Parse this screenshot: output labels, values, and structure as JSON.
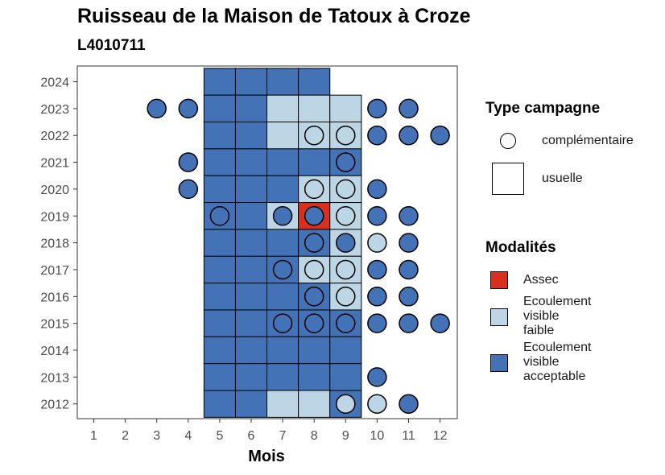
{
  "title": "Ruisseau de la Maison de Tatoux à Croze",
  "subtitle": "L4010711",
  "legend": {
    "type_title": "Type campagne",
    "type_items": [
      {
        "label": "complémentaire",
        "shape": "circle"
      },
      {
        "label": "usuelle",
        "shape": "square"
      }
    ],
    "modalites_title": "Modalités",
    "modalites_items": [
      {
        "label": [
          "Assec"
        ],
        "color": "#d7301f"
      },
      {
        "label": [
          "Ecoulement",
          "visible",
          "faible"
        ],
        "color": "#bcd6e6"
      },
      {
        "label": [
          "Ecoulement",
          "visible",
          "acceptable"
        ],
        "color": "#4373b6"
      }
    ]
  },
  "chart_data": {
    "type": "heatmap",
    "title": "Ruisseau de la Maison de Tatoux à Croze",
    "subtitle": "L4010711",
    "xlabel": "Mois",
    "ylabel": "",
    "x_categories": [
      "1",
      "2",
      "3",
      "4",
      "5",
      "6",
      "7",
      "8",
      "9",
      "10",
      "11",
      "12"
    ],
    "y_categories": [
      "2012",
      "2013",
      "2014",
      "2015",
      "2016",
      "2017",
      "2018",
      "2019",
      "2020",
      "2021",
      "2022",
      "2023",
      "2024"
    ],
    "colors": {
      "A": "#d7301f",
      "F": "#bcd6e6",
      "V": "#4373b6"
    },
    "grid": false,
    "legend_position": "right",
    "usuelle_squares": [
      {
        "year": 2024,
        "month": 5,
        "mod": "V"
      },
      {
        "year": 2024,
        "month": 6,
        "mod": "V"
      },
      {
        "year": 2024,
        "month": 7,
        "mod": "V"
      },
      {
        "year": 2024,
        "month": 8,
        "mod": "V"
      },
      {
        "year": 2023,
        "month": 5,
        "mod": "V"
      },
      {
        "year": 2023,
        "month": 6,
        "mod": "V"
      },
      {
        "year": 2023,
        "month": 7,
        "mod": "F"
      },
      {
        "year": 2023,
        "month": 8,
        "mod": "F"
      },
      {
        "year": 2023,
        "month": 9,
        "mod": "F"
      },
      {
        "year": 2022,
        "month": 5,
        "mod": "V"
      },
      {
        "year": 2022,
        "month": 6,
        "mod": "V"
      },
      {
        "year": 2022,
        "month": 7,
        "mod": "F"
      },
      {
        "year": 2022,
        "month": 8,
        "mod": "F"
      },
      {
        "year": 2022,
        "month": 9,
        "mod": "F"
      },
      {
        "year": 2021,
        "month": 5,
        "mod": "V"
      },
      {
        "year": 2021,
        "month": 6,
        "mod": "V"
      },
      {
        "year": 2021,
        "month": 7,
        "mod": "V"
      },
      {
        "year": 2021,
        "month": 8,
        "mod": "V"
      },
      {
        "year": 2021,
        "month": 9,
        "mod": "V"
      },
      {
        "year": 2020,
        "month": 5,
        "mod": "V"
      },
      {
        "year": 2020,
        "month": 6,
        "mod": "V"
      },
      {
        "year": 2020,
        "month": 7,
        "mod": "V"
      },
      {
        "year": 2020,
        "month": 8,
        "mod": "F"
      },
      {
        "year": 2020,
        "month": 9,
        "mod": "F"
      },
      {
        "year": 2019,
        "month": 5,
        "mod": "V"
      },
      {
        "year": 2019,
        "month": 6,
        "mod": "V"
      },
      {
        "year": 2019,
        "month": 7,
        "mod": "F"
      },
      {
        "year": 2019,
        "month": 8,
        "mod": "A"
      },
      {
        "year": 2019,
        "month": 9,
        "mod": "F"
      },
      {
        "year": 2018,
        "month": 5,
        "mod": "V"
      },
      {
        "year": 2018,
        "month": 6,
        "mod": "V"
      },
      {
        "year": 2018,
        "month": 7,
        "mod": "V"
      },
      {
        "year": 2018,
        "month": 8,
        "mod": "V"
      },
      {
        "year": 2018,
        "month": 9,
        "mod": "F"
      },
      {
        "year": 2017,
        "month": 5,
        "mod": "V"
      },
      {
        "year": 2017,
        "month": 6,
        "mod": "V"
      },
      {
        "year": 2017,
        "month": 7,
        "mod": "V"
      },
      {
        "year": 2017,
        "month": 8,
        "mod": "F"
      },
      {
        "year": 2017,
        "month": 9,
        "mod": "F"
      },
      {
        "year": 2016,
        "month": 5,
        "mod": "V"
      },
      {
        "year": 2016,
        "month": 6,
        "mod": "V"
      },
      {
        "year": 2016,
        "month": 7,
        "mod": "V"
      },
      {
        "year": 2016,
        "month": 8,
        "mod": "V"
      },
      {
        "year": 2016,
        "month": 9,
        "mod": "F"
      },
      {
        "year": 2015,
        "month": 5,
        "mod": "V"
      },
      {
        "year": 2015,
        "month": 6,
        "mod": "V"
      },
      {
        "year": 2015,
        "month": 7,
        "mod": "V"
      },
      {
        "year": 2015,
        "month": 8,
        "mod": "V"
      },
      {
        "year": 2015,
        "month": 9,
        "mod": "V"
      },
      {
        "year": 2014,
        "month": 5,
        "mod": "V"
      },
      {
        "year": 2014,
        "month": 6,
        "mod": "V"
      },
      {
        "year": 2014,
        "month": 7,
        "mod": "V"
      },
      {
        "year": 2014,
        "month": 8,
        "mod": "V"
      },
      {
        "year": 2014,
        "month": 9,
        "mod": "V"
      },
      {
        "year": 2013,
        "month": 5,
        "mod": "V"
      },
      {
        "year": 2013,
        "month": 6,
        "mod": "V"
      },
      {
        "year": 2013,
        "month": 7,
        "mod": "V"
      },
      {
        "year": 2013,
        "month": 8,
        "mod": "V"
      },
      {
        "year": 2013,
        "month": 9,
        "mod": "V"
      },
      {
        "year": 2012,
        "month": 5,
        "mod": "V"
      },
      {
        "year": 2012,
        "month": 6,
        "mod": "V"
      },
      {
        "year": 2012,
        "month": 7,
        "mod": "F"
      },
      {
        "year": 2012,
        "month": 8,
        "mod": "F"
      },
      {
        "year": 2012,
        "month": 9,
        "mod": "V"
      }
    ],
    "complementaire_circles": [
      {
        "year": 2023,
        "month": 3,
        "mod": "V"
      },
      {
        "year": 2023,
        "month": 4,
        "mod": "V"
      },
      {
        "year": 2023,
        "month": 10,
        "mod": "V"
      },
      {
        "year": 2023,
        "month": 11,
        "mod": "V"
      },
      {
        "year": 2022,
        "month": 8,
        "mod": "F"
      },
      {
        "year": 2022,
        "month": 9,
        "mod": "F"
      },
      {
        "year": 2022,
        "month": 10,
        "mod": "V"
      },
      {
        "year": 2022,
        "month": 11,
        "mod": "V"
      },
      {
        "year": 2022,
        "month": 12,
        "mod": "V"
      },
      {
        "year": 2021,
        "month": 4,
        "mod": "V"
      },
      {
        "year": 2021,
        "month": 9,
        "mod": "V"
      },
      {
        "year": 2020,
        "month": 4,
        "mod": "V"
      },
      {
        "year": 2020,
        "month": 8,
        "mod": "F"
      },
      {
        "year": 2020,
        "month": 9,
        "mod": "F"
      },
      {
        "year": 2020,
        "month": 10,
        "mod": "V"
      },
      {
        "year": 2019,
        "month": 5,
        "mod": "V"
      },
      {
        "year": 2019,
        "month": 7,
        "mod": "V"
      },
      {
        "year": 2019,
        "month": 8,
        "mod": "V"
      },
      {
        "year": 2019,
        "month": 9,
        "mod": "F"
      },
      {
        "year": 2019,
        "month": 10,
        "mod": "V"
      },
      {
        "year": 2019,
        "month": 11,
        "mod": "V"
      },
      {
        "year": 2018,
        "month": 8,
        "mod": "V"
      },
      {
        "year": 2018,
        "month": 9,
        "mod": "V"
      },
      {
        "year": 2018,
        "month": 10,
        "mod": "F"
      },
      {
        "year": 2018,
        "month": 11,
        "mod": "V"
      },
      {
        "year": 2017,
        "month": 7,
        "mod": "V"
      },
      {
        "year": 2017,
        "month": 8,
        "mod": "F"
      },
      {
        "year": 2017,
        "month": 9,
        "mod": "F"
      },
      {
        "year": 2017,
        "month": 10,
        "mod": "V"
      },
      {
        "year": 2017,
        "month": 11,
        "mod": "V"
      },
      {
        "year": 2016,
        "month": 8,
        "mod": "V"
      },
      {
        "year": 2016,
        "month": 9,
        "mod": "F"
      },
      {
        "year": 2016,
        "month": 10,
        "mod": "V"
      },
      {
        "year": 2016,
        "month": 11,
        "mod": "V"
      },
      {
        "year": 2015,
        "month": 7,
        "mod": "V"
      },
      {
        "year": 2015,
        "month": 8,
        "mod": "V"
      },
      {
        "year": 2015,
        "month": 9,
        "mod": "V"
      },
      {
        "year": 2015,
        "month": 10,
        "mod": "V"
      },
      {
        "year": 2015,
        "month": 11,
        "mod": "V"
      },
      {
        "year": 2015,
        "month": 12,
        "mod": "V"
      },
      {
        "year": 2013,
        "month": 10,
        "mod": "V"
      },
      {
        "year": 2012,
        "month": 9,
        "mod": "F"
      },
      {
        "year": 2012,
        "month": 10,
        "mod": "F"
      },
      {
        "year": 2012,
        "month": 11,
        "mod": "V"
      }
    ]
  }
}
